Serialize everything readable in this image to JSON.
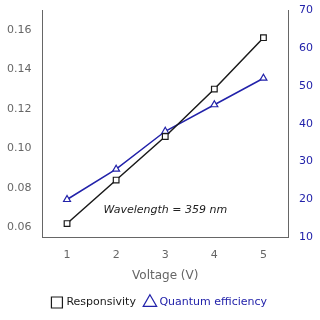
{
  "chart_data": {
    "type": "line",
    "x": [
      1,
      2,
      3,
      4,
      5
    ],
    "series": [
      {
        "name": "Responsivity",
        "color": "#1a1a1a",
        "marker": "square",
        "line_style": "solid",
        "axis": "y",
        "values": [
          0.062,
          0.084,
          0.106,
          0.13,
          0.156
        ]
      },
      {
        "name": "Quantum efficiency",
        "color": "#2222aa",
        "marker": "triangle",
        "line_style": "solid",
        "axis": "y2",
        "values": [
          20,
          28,
          38,
          45,
          52
        ]
      }
    ],
    "xlabel": "Voltage (V)",
    "annotation": "Wavelength = 359 nm",
    "xlim": [
      0.5,
      5.5
    ],
    "xticks": [
      1,
      2,
      3,
      4,
      5
    ],
    "ylim": [
      0.055,
      0.17
    ],
    "yticks": [
      0.06,
      0.08,
      {
        "value": 0.1,
        "label": "0.10"
      },
      0.12,
      0.14,
      0.16
    ],
    "y2lim": [
      10,
      70
    ],
    "y2ticks": [
      10,
      20,
      30,
      40,
      50,
      60,
      70
    ],
    "grid": false,
    "legend": "bottom"
  }
}
